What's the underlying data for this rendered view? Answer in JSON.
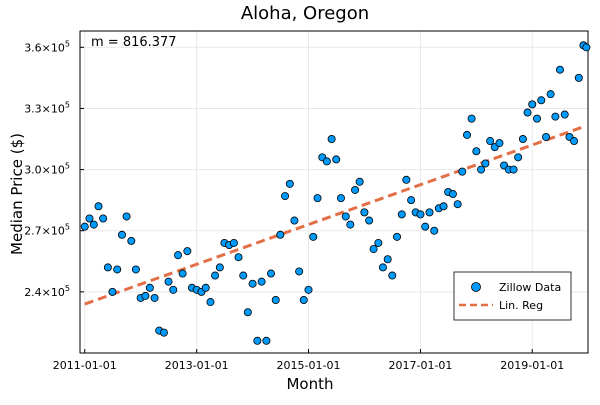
{
  "chart_data": {
    "type": "scatter",
    "title": "Aloha, Oregon",
    "xlabel": "Month",
    "ylabel": "Median Price ($)",
    "annotation": "m = 816.377",
    "xlim": [
      "2010-12-01",
      "2019-12-31"
    ],
    "ylim": [
      210000,
      368000
    ],
    "grid": true,
    "legend_position": "bottom-right",
    "x_ticks": [
      "2011-01-01",
      "2013-01-01",
      "2015-01-01",
      "2017-01-01",
      "2019-01-01"
    ],
    "y_ticks": [
      {
        "value": 240000,
        "base": "2.4×10",
        "exp": "5"
      },
      {
        "value": 270000,
        "base": "2.7×10",
        "exp": "5"
      },
      {
        "value": 300000,
        "base": "3.0×10",
        "exp": "5"
      },
      {
        "value": 330000,
        "base": "3.3×10",
        "exp": "5"
      },
      {
        "value": 360000,
        "base": "3.6×10",
        "exp": "5"
      }
    ],
    "series": [
      {
        "name": "Zillow Data",
        "kind": "scatter",
        "color": "#009AFA",
        "points": [
          {
            "x": "2011-01-01",
            "y": 272000
          },
          {
            "x": "2011-02-01",
            "y": 276000
          },
          {
            "x": "2011-03-01",
            "y": 273000
          },
          {
            "x": "2011-04-01",
            "y": 282000
          },
          {
            "x": "2011-05-01",
            "y": 276000
          },
          {
            "x": "2011-06-01",
            "y": 252000
          },
          {
            "x": "2011-07-01",
            "y": 240000
          },
          {
            "x": "2011-08-01",
            "y": 251000
          },
          {
            "x": "2011-09-01",
            "y": 268000
          },
          {
            "x": "2011-10-01",
            "y": 277000
          },
          {
            "x": "2011-11-01",
            "y": 265000
          },
          {
            "x": "2011-12-01",
            "y": 251000
          },
          {
            "x": "2012-01-01",
            "y": 237000
          },
          {
            "x": "2012-02-01",
            "y": 238000
          },
          {
            "x": "2012-03-01",
            "y": 242000
          },
          {
            "x": "2012-04-01",
            "y": 237000
          },
          {
            "x": "2012-05-01",
            "y": 221000
          },
          {
            "x": "2012-06-01",
            "y": 220000
          },
          {
            "x": "2012-07-01",
            "y": 245000
          },
          {
            "x": "2012-08-01",
            "y": 241000
          },
          {
            "x": "2012-09-01",
            "y": 258000
          },
          {
            "x": "2012-10-01",
            "y": 249000
          },
          {
            "x": "2012-11-01",
            "y": 260000
          },
          {
            "x": "2012-12-01",
            "y": 242000
          },
          {
            "x": "2013-01-01",
            "y": 241000
          },
          {
            "x": "2013-02-01",
            "y": 240000
          },
          {
            "x": "2013-03-01",
            "y": 242000
          },
          {
            "x": "2013-04-01",
            "y": 235000
          },
          {
            "x": "2013-05-01",
            "y": 248000
          },
          {
            "x": "2013-06-01",
            "y": 252000
          },
          {
            "x": "2013-07-01",
            "y": 264000
          },
          {
            "x": "2013-08-01",
            "y": 263000
          },
          {
            "x": "2013-09-01",
            "y": 264000
          },
          {
            "x": "2013-10-01",
            "y": 257000
          },
          {
            "x": "2013-11-01",
            "y": 248000
          },
          {
            "x": "2013-12-01",
            "y": 230000
          },
          {
            "x": "2014-01-01",
            "y": 244000
          },
          {
            "x": "2014-02-01",
            "y": 216000
          },
          {
            "x": "2014-03-01",
            "y": 245000
          },
          {
            "x": "2014-04-01",
            "y": 216000
          },
          {
            "x": "2014-05-01",
            "y": 249000
          },
          {
            "x": "2014-06-01",
            "y": 236000
          },
          {
            "x": "2014-07-01",
            "y": 268000
          },
          {
            "x": "2014-08-01",
            "y": 287000
          },
          {
            "x": "2014-09-01",
            "y": 293000
          },
          {
            "x": "2014-10-01",
            "y": 275000
          },
          {
            "x": "2014-11-01",
            "y": 250000
          },
          {
            "x": "2014-12-01",
            "y": 236000
          },
          {
            "x": "2015-01-01",
            "y": 241000
          },
          {
            "x": "2015-02-01",
            "y": 267000
          },
          {
            "x": "2015-03-01",
            "y": 286000
          },
          {
            "x": "2015-04-01",
            "y": 306000
          },
          {
            "x": "2015-05-01",
            "y": 304000
          },
          {
            "x": "2015-06-01",
            "y": 315000
          },
          {
            "x": "2015-07-01",
            "y": 305000
          },
          {
            "x": "2015-08-01",
            "y": 286000
          },
          {
            "x": "2015-09-01",
            "y": 277000
          },
          {
            "x": "2015-10-01",
            "y": 273000
          },
          {
            "x": "2015-11-01",
            "y": 290000
          },
          {
            "x": "2015-12-01",
            "y": 294000
          },
          {
            "x": "2016-01-01",
            "y": 279000
          },
          {
            "x": "2016-02-01",
            "y": 275000
          },
          {
            "x": "2016-03-01",
            "y": 261000
          },
          {
            "x": "2016-04-01",
            "y": 264000
          },
          {
            "x": "2016-05-01",
            "y": 252000
          },
          {
            "x": "2016-06-01",
            "y": 256000
          },
          {
            "x": "2016-07-01",
            "y": 248000
          },
          {
            "x": "2016-08-01",
            "y": 267000
          },
          {
            "x": "2016-09-01",
            "y": 278000
          },
          {
            "x": "2016-10-01",
            "y": 295000
          },
          {
            "x": "2016-11-01",
            "y": 285000
          },
          {
            "x": "2016-12-01",
            "y": 279000
          },
          {
            "x": "2017-01-01",
            "y": 278000
          },
          {
            "x": "2017-02-01",
            "y": 272000
          },
          {
            "x": "2017-03-01",
            "y": 279000
          },
          {
            "x": "2017-04-01",
            "y": 270000
          },
          {
            "x": "2017-05-01",
            "y": 281000
          },
          {
            "x": "2017-06-01",
            "y": 282000
          },
          {
            "x": "2017-07-01",
            "y": 289000
          },
          {
            "x": "2017-08-01",
            "y": 288000
          },
          {
            "x": "2017-09-01",
            "y": 283000
          },
          {
            "x": "2017-10-01",
            "y": 299000
          },
          {
            "x": "2017-11-01",
            "y": 317000
          },
          {
            "x": "2017-12-01",
            "y": 325000
          },
          {
            "x": "2018-01-01",
            "y": 309000
          },
          {
            "x": "2018-02-01",
            "y": 300000
          },
          {
            "x": "2018-03-01",
            "y": 303000
          },
          {
            "x": "2018-04-01",
            "y": 314000
          },
          {
            "x": "2018-05-01",
            "y": 311000
          },
          {
            "x": "2018-06-01",
            "y": 313000
          },
          {
            "x": "2018-07-01",
            "y": 302000
          },
          {
            "x": "2018-08-01",
            "y": 300000
          },
          {
            "x": "2018-09-01",
            "y": 300000
          },
          {
            "x": "2018-10-01",
            "y": 306000
          },
          {
            "x": "2018-11-01",
            "y": 315000
          },
          {
            "x": "2018-12-01",
            "y": 328000
          },
          {
            "x": "2019-01-01",
            "y": 332000
          },
          {
            "x": "2019-02-01",
            "y": 325000
          },
          {
            "x": "2019-03-01",
            "y": 334000
          },
          {
            "x": "2019-04-01",
            "y": 316000
          },
          {
            "x": "2019-05-01",
            "y": 337000
          },
          {
            "x": "2019-06-01",
            "y": 326000
          },
          {
            "x": "2019-07-01",
            "y": 349000
          },
          {
            "x": "2019-08-01",
            "y": 327000
          },
          {
            "x": "2019-09-01",
            "y": 316000
          },
          {
            "x": "2019-10-01",
            "y": 314000
          },
          {
            "x": "2019-11-01",
            "y": 345000
          },
          {
            "x": "2019-12-01",
            "y": 361000
          },
          {
            "x": "2019-12-20",
            "y": 360000
          }
        ]
      },
      {
        "name": "Lin. Reg",
        "kind": "line",
        "style": "dashed",
        "color": "#E26F46",
        "points": [
          {
            "x": "2011-01-01",
            "y": 234000
          },
          {
            "x": "2019-12-01",
            "y": 321000
          }
        ]
      }
    ]
  }
}
